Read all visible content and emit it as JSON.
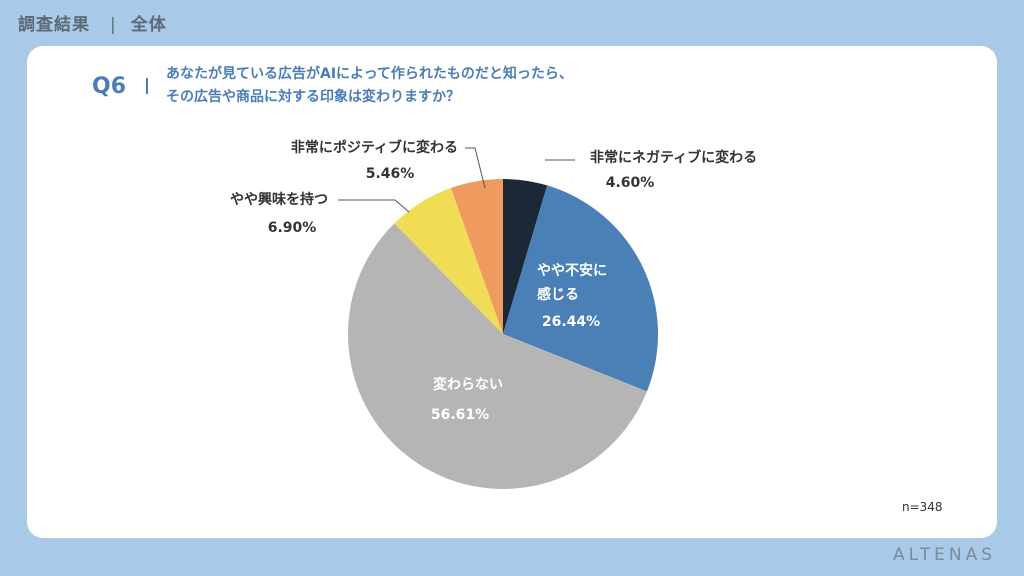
{
  "header": {
    "title": "調査結果",
    "separator": "|",
    "subtitle": "全体"
  },
  "question": {
    "number": "Q6",
    "text_line1": "あなたが見ている広告がAIによって作られたものだと知ったら、",
    "text_line2": "その広告や商品に対する印象は変わりますか？"
  },
  "chart_data": {
    "type": "pie",
    "slices": [
      {
        "label": "非常にネガティブに変わる",
        "value": 4.6,
        "display": "4.60%",
        "color": "#1c2836"
      },
      {
        "label": "やや不安に感じる",
        "value": 26.44,
        "display": "26.44%",
        "color": "#4a80b6"
      },
      {
        "label": "変わらない",
        "value": 56.61,
        "display": "56.61%",
        "color": "#b5b5b5"
      },
      {
        "label": "やや興味を持つ",
        "value": 6.9,
        "display": "6.90%",
        "color": "#f0dc55"
      },
      {
        "label": "非常にポジティブに変わる",
        "value": 5.46,
        "display": "5.46%",
        "color": "#ef9a5e"
      }
    ],
    "start": "12 o'clock",
    "direction": "clockwise",
    "legend": "none"
  },
  "footer": {
    "n_label": "n=348",
    "brand": "ALTENAS"
  }
}
